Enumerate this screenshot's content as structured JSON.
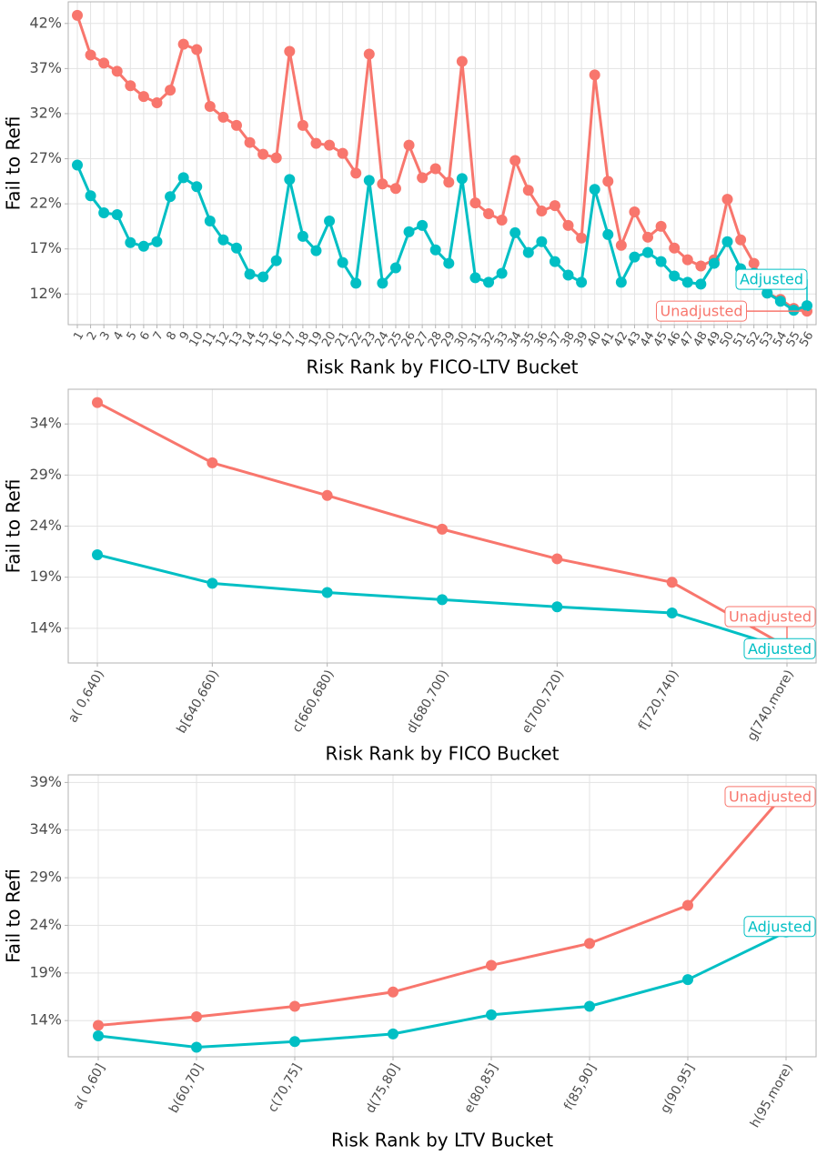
{
  "chart_data": [
    {
      "type": "line",
      "ylabel": "Fail to Refi",
      "xlabel": "Risk Rank by FICO-LTV Bucket",
      "categories": [
        "1",
        "2",
        "3",
        "4",
        "5",
        "6",
        "7",
        "8",
        "9",
        "10",
        "11",
        "12",
        "13",
        "14",
        "15",
        "16",
        "17",
        "18",
        "19",
        "20",
        "21",
        "22",
        "23",
        "24",
        "25",
        "26",
        "27",
        "28",
        "29",
        "30",
        "31",
        "32",
        "33",
        "34",
        "35",
        "36",
        "37",
        "38",
        "39",
        "40",
        "41",
        "42",
        "43",
        "44",
        "45",
        "46",
        "47",
        "48",
        "49",
        "50",
        "51",
        "52",
        "53",
        "54",
        "55",
        "56"
      ],
      "series": [
        {
          "name": "Unadjusted",
          "color": "#f8766d",
          "values": [
            42.9,
            38.5,
            37.6,
            36.7,
            35.1,
            33.9,
            33.2,
            34.6,
            39.7,
            39.1,
            32.8,
            31.6,
            30.7,
            28.8,
            27.5,
            27.1,
            38.9,
            30.7,
            28.7,
            28.5,
            27.6,
            25.4,
            38.6,
            24.2,
            23.7,
            28.5,
            24.9,
            25.9,
            24.4,
            37.8,
            22.1,
            20.9,
            20.2,
            26.8,
            23.5,
            21.2,
            21.8,
            19.6,
            18.2,
            36.3,
            24.5,
            17.4,
            21.1,
            18.3,
            19.5,
            17.1,
            15.8,
            15.1,
            15.8,
            22.5,
            18.0,
            15.4,
            12.1,
            11.4,
            10.4,
            10.1
          ]
        },
        {
          "name": "Adjusted",
          "color": "#00bfc4",
          "values": [
            26.3,
            22.9,
            21.0,
            20.8,
            17.7,
            17.3,
            17.8,
            22.8,
            24.9,
            23.9,
            20.1,
            18.0,
            17.1,
            14.2,
            13.9,
            15.7,
            24.7,
            18.4,
            16.8,
            20.1,
            15.5,
            13.2,
            24.6,
            13.2,
            14.9,
            18.9,
            19.6,
            16.9,
            15.4,
            24.8,
            13.8,
            13.3,
            14.3,
            18.8,
            16.6,
            17.8,
            15.6,
            14.1,
            13.3,
            23.6,
            18.6,
            13.3,
            16.1,
            16.6,
            15.6,
            14.0,
            13.3,
            13.1,
            15.4,
            17.8,
            14.8,
            14.3,
            12.1,
            11.2,
            10.2,
            10.7
          ]
        }
      ],
      "ylim": [
        8.6,
        44.4
      ],
      "yticks": [
        {
          "value": 12,
          "label": "12%"
        },
        {
          "value": 17,
          "label": "17%"
        },
        {
          "value": 22,
          "label": "22%"
        },
        {
          "value": 27,
          "label": "27%"
        },
        {
          "value": 32,
          "label": "32%"
        },
        {
          "value": 37,
          "label": "37%"
        },
        {
          "value": 42,
          "label": "42%"
        }
      ],
      "grid": true
    },
    {
      "type": "line",
      "ylabel": "Fail to Refi",
      "xlabel": "Risk Rank by FICO Bucket",
      "categories": [
        "a( 0,640)",
        "b[640,660)",
        "c[660,680)",
        "d[680,700)",
        "e[700,720)",
        "f[720,740)",
        "g[740,more)"
      ],
      "series": [
        {
          "name": "Unadjusted",
          "color": "#f8766d",
          "values": [
            36.1,
            30.2,
            27.0,
            23.7,
            20.8,
            18.5,
            12.2
          ]
        },
        {
          "name": "Adjusted",
          "color": "#00bfc4",
          "values": [
            21.2,
            18.4,
            17.5,
            16.8,
            16.1,
            15.5,
            12.0
          ]
        }
      ],
      "ylim": [
        10.6,
        37.4
      ],
      "yticks": [
        {
          "value": 14,
          "label": "14%"
        },
        {
          "value": 19,
          "label": "19%"
        },
        {
          "value": 24,
          "label": "24%"
        },
        {
          "value": 29,
          "label": "29%"
        },
        {
          "value": 34,
          "label": "34%"
        }
      ],
      "grid": true
    },
    {
      "type": "line",
      "ylabel": "Fail to Refi",
      "xlabel": "Risk Rank by LTV Bucket",
      "categories": [
        "a( 0,60]",
        "b(60,70]",
        "c(70,75]",
        "d(75,80]",
        "e(80,85]",
        "f(85,90]",
        "g(90,95]",
        "h(95,more)"
      ],
      "series": [
        {
          "name": "Unadjusted",
          "color": "#f8766d",
          "values": [
            13.5,
            14.4,
            15.5,
            17.0,
            19.8,
            22.1,
            26.1,
            38.0
          ]
        },
        {
          "name": "Adjusted",
          "color": "#00bfc4",
          "values": [
            12.4,
            11.2,
            11.8,
            12.6,
            14.6,
            15.5,
            18.3,
            23.3
          ]
        }
      ],
      "ylim": [
        10.2,
        39.8
      ],
      "yticks": [
        {
          "value": 14,
          "label": "14%"
        },
        {
          "value": 19,
          "label": "19%"
        },
        {
          "value": 24,
          "label": "24%"
        },
        {
          "value": 29,
          "label": "29%"
        },
        {
          "value": 34,
          "label": "34%"
        },
        {
          "value": 39,
          "label": "39%"
        }
      ],
      "grid": true
    }
  ]
}
